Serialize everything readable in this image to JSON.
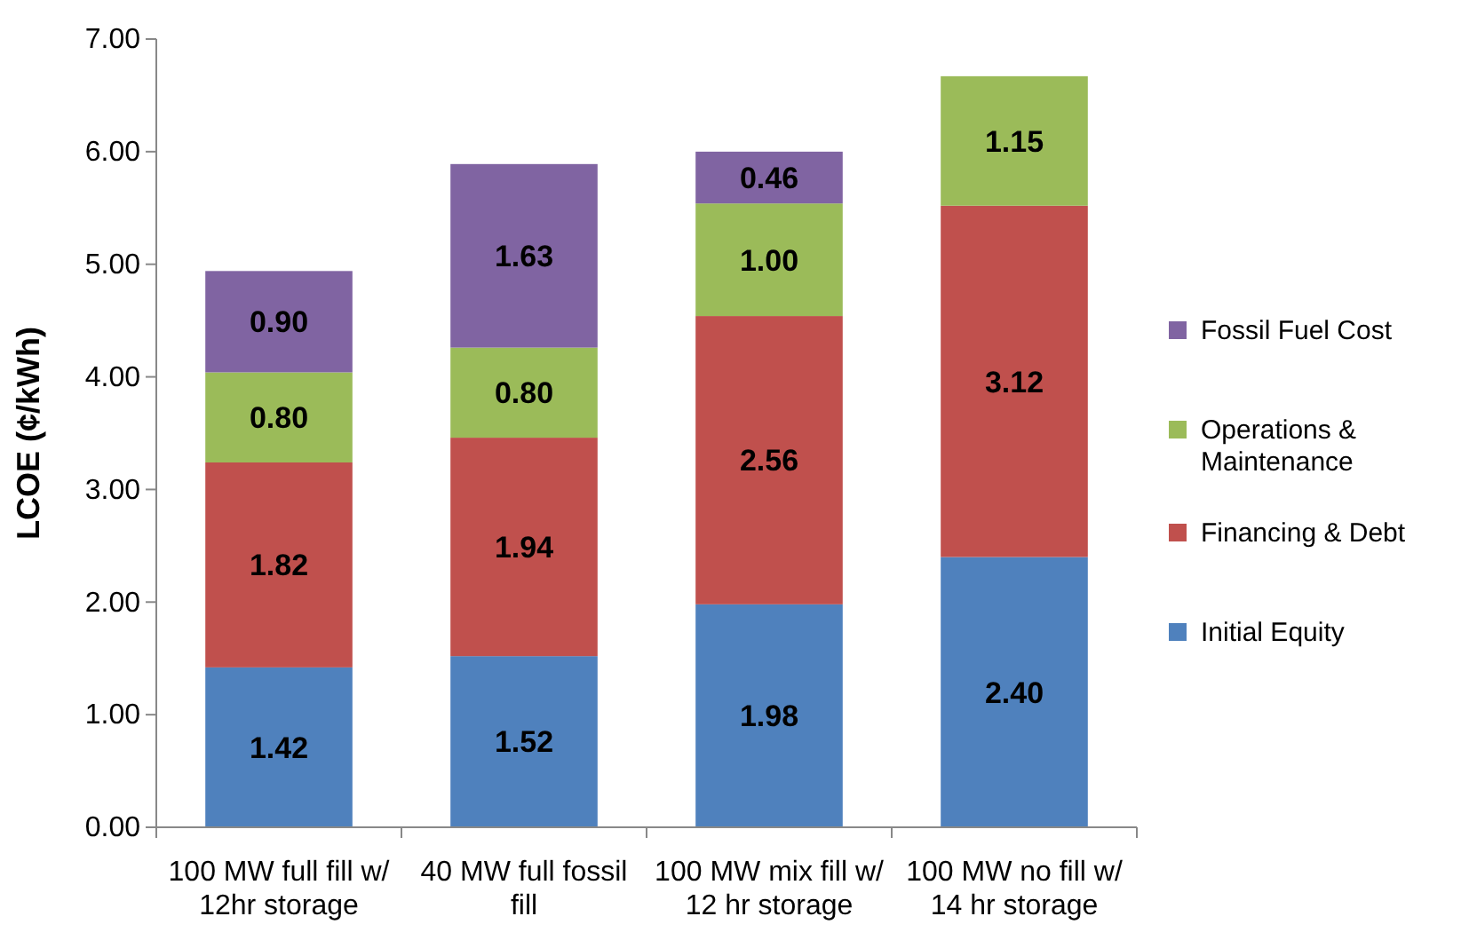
{
  "chart_data": {
    "type": "bar",
    "stacked": true,
    "ylabel": "LCOE (¢/kWh)",
    "categories": [
      "100 MW full fill w/ 12hr storage",
      "40 MW full fossil fill",
      "100 MW mix fill w/ 12 hr storage",
      "100 MW no fill w/ 14 hr storage"
    ],
    "series": [
      {
        "name": "Initial Equity",
        "color": "#4f81bd",
        "values": [
          1.42,
          1.52,
          1.98,
          2.4
        ],
        "value_labels": [
          "1.42",
          "1.52",
          "1.98",
          "2.40"
        ]
      },
      {
        "name": "Financing & Debt",
        "color": "#c0504d",
        "values": [
          1.82,
          1.94,
          2.56,
          3.12
        ],
        "value_labels": [
          "1.82",
          "1.94",
          "2.56",
          "3.12"
        ]
      },
      {
        "name": "Operations & Maintenance",
        "color": "#9bbb59",
        "values": [
          0.8,
          0.8,
          1.0,
          1.15
        ],
        "value_labels": [
          "0.80",
          "0.80",
          "1.00",
          "1.15"
        ]
      },
      {
        "name": "Fossil Fuel Cost",
        "color": "#8064a2",
        "values": [
          0.9,
          1.63,
          0.46,
          null
        ],
        "value_labels": [
          "0.90",
          "1.63",
          "0.46",
          null
        ]
      }
    ],
    "ylim": [
      0,
      7
    ],
    "yticks": [
      {
        "value": 0,
        "label": "0.00"
      },
      {
        "value": 1,
        "label": "1.00"
      },
      {
        "value": 2,
        "label": "2.00"
      },
      {
        "value": 3,
        "label": "3.00"
      },
      {
        "value": 4,
        "label": "4.00"
      },
      {
        "value": 5,
        "label": "5.00"
      },
      {
        "value": 6,
        "label": "6.00"
      },
      {
        "value": 7,
        "label": "7.00"
      }
    ],
    "grid": false,
    "legend": "right"
  }
}
